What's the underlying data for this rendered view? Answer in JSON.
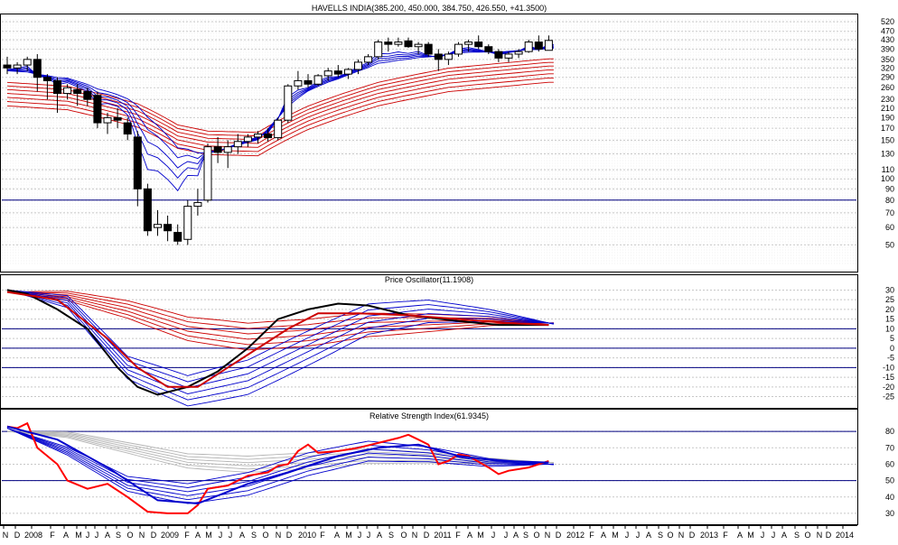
{
  "chart_data": [
    {
      "type": "candlestick",
      "title": "HAVELLS INDIA(385.200, 450.000, 384.750, 426.550, +41.3500)",
      "y_scale": "log",
      "ylim": [
        40,
        530
      ],
      "y_ticks": [
        50,
        60,
        70,
        80,
        90,
        100,
        110,
        130,
        150,
        170,
        190,
        210,
        230,
        260,
        290,
        320,
        350,
        390,
        430,
        470,
        520
      ],
      "hline": 80,
      "colors": {
        "short_ma": "#0000cc",
        "long_ma": "#cc0000",
        "candle": "#000000"
      },
      "candles": [
        {
          "x": 0,
          "o": 330,
          "h": 360,
          "l": 300,
          "c": 320
        },
        {
          "x": 1,
          "o": 320,
          "h": 340,
          "l": 300,
          "c": 330
        },
        {
          "x": 2,
          "o": 330,
          "h": 360,
          "l": 310,
          "c": 350
        },
        {
          "x": 3,
          "o": 350,
          "h": 370,
          "l": 250,
          "c": 290
        },
        {
          "x": 4,
          "o": 290,
          "h": 300,
          "l": 230,
          "c": 280
        },
        {
          "x": 5,
          "o": 280,
          "h": 290,
          "l": 200,
          "c": 245
        },
        {
          "x": 6,
          "o": 245,
          "h": 270,
          "l": 230,
          "c": 260
        },
        {
          "x": 7,
          "o": 255,
          "h": 270,
          "l": 215,
          "c": 245
        },
        {
          "x": 8,
          "o": 250,
          "h": 260,
          "l": 215,
          "c": 230
        },
        {
          "x": 9,
          "o": 240,
          "h": 250,
          "l": 170,
          "c": 180
        },
        {
          "x": 10,
          "o": 180,
          "h": 200,
          "l": 160,
          "c": 190
        },
        {
          "x": 11,
          "o": 190,
          "h": 210,
          "l": 170,
          "c": 185
        },
        {
          "x": 12,
          "o": 180,
          "h": 190,
          "l": 150,
          "c": 160
        },
        {
          "x": 13,
          "o": 155,
          "h": 165,
          "l": 75,
          "c": 90
        },
        {
          "x": 14,
          "o": 90,
          "h": 95,
          "l": 55,
          "c": 58
        },
        {
          "x": 15,
          "o": 60,
          "h": 72,
          "l": 55,
          "c": 62
        },
        {
          "x": 16,
          "o": 62,
          "h": 68,
          "l": 52,
          "c": 58
        },
        {
          "x": 17,
          "o": 57,
          "h": 62,
          "l": 50,
          "c": 52
        },
        {
          "x": 18,
          "o": 53,
          "h": 80,
          "l": 50,
          "c": 75
        },
        {
          "x": 19,
          "o": 75,
          "h": 90,
          "l": 68,
          "c": 78
        },
        {
          "x": 20,
          "o": 80,
          "h": 145,
          "l": 78,
          "c": 140
        },
        {
          "x": 21,
          "o": 140,
          "h": 155,
          "l": 118,
          "c": 132
        },
        {
          "x": 22,
          "o": 132,
          "h": 150,
          "l": 112,
          "c": 140
        },
        {
          "x": 23,
          "o": 140,
          "h": 160,
          "l": 130,
          "c": 148
        },
        {
          "x": 24,
          "o": 148,
          "h": 160,
          "l": 140,
          "c": 155
        },
        {
          "x": 25,
          "o": 155,
          "h": 165,
          "l": 145,
          "c": 160
        },
        {
          "x": 26,
          "o": 160,
          "h": 170,
          "l": 148,
          "c": 154
        },
        {
          "x": 27,
          "o": 154,
          "h": 190,
          "l": 150,
          "c": 185
        },
        {
          "x": 28,
          "o": 185,
          "h": 270,
          "l": 180,
          "c": 265
        },
        {
          "x": 29,
          "o": 265,
          "h": 310,
          "l": 255,
          "c": 280
        },
        {
          "x": 30,
          "o": 280,
          "h": 300,
          "l": 260,
          "c": 270
        },
        {
          "x": 31,
          "o": 270,
          "h": 300,
          "l": 265,
          "c": 295
        },
        {
          "x": 32,
          "o": 295,
          "h": 320,
          "l": 280,
          "c": 310
        },
        {
          "x": 33,
          "o": 310,
          "h": 330,
          "l": 290,
          "c": 300
        },
        {
          "x": 34,
          "o": 300,
          "h": 320,
          "l": 285,
          "c": 315
        },
        {
          "x": 35,
          "o": 315,
          "h": 350,
          "l": 300,
          "c": 340
        },
        {
          "x": 36,
          "o": 340,
          "h": 370,
          "l": 330,
          "c": 360
        },
        {
          "x": 37,
          "o": 360,
          "h": 430,
          "l": 350,
          "c": 420
        },
        {
          "x": 38,
          "o": 420,
          "h": 440,
          "l": 380,
          "c": 410
        },
        {
          "x": 39,
          "o": 410,
          "h": 440,
          "l": 400,
          "c": 420
        },
        {
          "x": 40,
          "o": 425,
          "h": 440,
          "l": 395,
          "c": 400
        },
        {
          "x": 41,
          "o": 400,
          "h": 420,
          "l": 370,
          "c": 410
        },
        {
          "x": 42,
          "o": 410,
          "h": 420,
          "l": 360,
          "c": 370
        },
        {
          "x": 43,
          "o": 370,
          "h": 390,
          "l": 310,
          "c": 350
        },
        {
          "x": 44,
          "o": 350,
          "h": 380,
          "l": 330,
          "c": 370
        },
        {
          "x": 45,
          "o": 370,
          "h": 420,
          "l": 360,
          "c": 410
        },
        {
          "x": 46,
          "o": 410,
          "h": 430,
          "l": 380,
          "c": 420
        },
        {
          "x": 47,
          "o": 420,
          "h": 450,
          "l": 390,
          "c": 400
        },
        {
          "x": 48,
          "o": 400,
          "h": 410,
          "l": 370,
          "c": 380
        },
        {
          "x": 49,
          "o": 380,
          "h": 390,
          "l": 340,
          "c": 355
        },
        {
          "x": 50,
          "o": 355,
          "h": 380,
          "l": 340,
          "c": 370
        },
        {
          "x": 51,
          "o": 370,
          "h": 390,
          "l": 355,
          "c": 380
        },
        {
          "x": 52,
          "o": 380,
          "h": 430,
          "l": 375,
          "c": 420
        },
        {
          "x": 53,
          "o": 420,
          "h": 450,
          "l": 380,
          "c": 390
        },
        {
          "x": 54,
          "o": 385,
          "h": 450,
          "l": 385,
          "c": 427
        }
      ],
      "ma_blue": [
        [
          0,
          310
        ],
        [
          6,
          290
        ],
        [
          13,
          230
        ],
        [
          17,
          150
        ],
        [
          20,
          130
        ],
        [
          25,
          150
        ],
        [
          30,
          250
        ],
        [
          37,
          330
        ],
        [
          44,
          370
        ],
        [
          54,
          390
        ]
      ],
      "ma_red": [
        [
          0,
          250
        ],
        [
          6,
          240
        ],
        [
          13,
          200
        ],
        [
          17,
          160
        ],
        [
          20,
          150
        ],
        [
          25,
          148
        ],
        [
          30,
          195
        ],
        [
          37,
          250
        ],
        [
          44,
          290
        ],
        [
          54,
          320
        ]
      ]
    },
    {
      "type": "line",
      "title": "Price Oscillator(11.1908)",
      "ylim": [
        -28,
        33
      ],
      "y_ticks": [
        30,
        25,
        20,
        15,
        10,
        5,
        0,
        -5,
        -10,
        -15,
        -20,
        -25
      ],
      "hlines": [
        10,
        0,
        -10
      ],
      "series": [
        {
          "color": "#000000",
          "points": [
            [
              0,
              30
            ],
            [
              2,
              28
            ],
            [
              5,
              20
            ],
            [
              8,
              10
            ],
            [
              11,
              -10
            ],
            [
              13,
              -20
            ],
            [
              15,
              -24
            ],
            [
              18,
              -20
            ],
            [
              21,
              -12
            ],
            [
              24,
              0
            ],
            [
              27,
              15
            ],
            [
              30,
              20
            ],
            [
              33,
              23
            ],
            [
              36,
              22
            ],
            [
              40,
              17
            ],
            [
              45,
              14
            ],
            [
              49,
              12
            ],
            [
              54,
              12
            ]
          ]
        },
        {
          "color": "#cc0000",
          "points": [
            [
              0,
              29
            ],
            [
              5,
              25
            ],
            [
              10,
              5
            ],
            [
              13,
              -10
            ],
            [
              16,
              -20
            ],
            [
              19,
              -20
            ],
            [
              22,
              -10
            ],
            [
              25,
              0
            ],
            [
              28,
              10
            ],
            [
              31,
              18
            ],
            [
              35,
              18
            ],
            [
              40,
              17
            ],
            [
              45,
              15
            ],
            [
              50,
              13
            ],
            [
              54,
              12
            ]
          ]
        }
      ],
      "ma_fan": {
        "blue": [
          30,
          24,
          -10,
          -22,
          -15,
          0,
          15,
          19,
          17,
          13
        ],
        "red": [
          29,
          27,
          20,
          10,
          6,
          8,
          12,
          13,
          14,
          13
        ]
      }
    },
    {
      "type": "line",
      "title": "Relative Strength Index(61.9345)",
      "ylim": [
        25,
        90
      ],
      "y_ticks": [
        80,
        70,
        60,
        50,
        40,
        30
      ],
      "hlines": [
        80,
        50
      ],
      "series": [
        {
          "color": "#ff0000",
          "points": [
            [
              0,
              83
            ],
            [
              1,
              82
            ],
            [
              2,
              85
            ],
            [
              3,
              70
            ],
            [
              4,
              65
            ],
            [
              5,
              60
            ],
            [
              6,
              50
            ],
            [
              8,
              45
            ],
            [
              10,
              48
            ],
            [
              12,
              40
            ],
            [
              14,
              31
            ],
            [
              16,
              30
            ],
            [
              18,
              30
            ],
            [
              19,
              35
            ],
            [
              20,
              45
            ],
            [
              22,
              47
            ],
            [
              24,
              53
            ],
            [
              26,
              55
            ],
            [
              27,
              59
            ],
            [
              28,
              60
            ],
            [
              29,
              68
            ],
            [
              30,
              72
            ],
            [
              31,
              67
            ],
            [
              33,
              68
            ],
            [
              35,
              70
            ],
            [
              37,
              73
            ],
            [
              39,
              76
            ],
            [
              40,
              78
            ],
            [
              41,
              75
            ],
            [
              42,
              72
            ],
            [
              43,
              60
            ],
            [
              44,
              62
            ],
            [
              45,
              66
            ],
            [
              46,
              65
            ],
            [
              48,
              58
            ],
            [
              49,
              54
            ],
            [
              50,
              56
            ],
            [
              52,
              58
            ],
            [
              53,
              60
            ],
            [
              54,
              61.9
            ]
          ]
        },
        {
          "color": "#0000cc",
          "points": [
            [
              0,
              83
            ],
            [
              5,
              75
            ],
            [
              10,
              58
            ],
            [
              15,
              38
            ],
            [
              19,
              36
            ],
            [
              24,
              48
            ],
            [
              28,
              55
            ],
            [
              33,
              65
            ],
            [
              37,
              70
            ],
            [
              41,
              72
            ],
            [
              45,
              65
            ],
            [
              49,
              62
            ],
            [
              54,
              61
            ]
          ]
        }
      ],
      "ma_fan": {
        "blue": [
          82,
          68,
          48,
          42,
          48,
          60,
          68,
          66,
          61,
          60
        ],
        "gray": [
          80,
          78,
          70,
          62,
          60,
          62,
          65,
          64,
          62,
          61
        ]
      }
    }
  ],
  "x_axis": {
    "month_labels": [
      "N",
      "D",
      "2008",
      "F",
      "A",
      "M",
      "J",
      "J",
      "A",
      "S",
      "O",
      "N",
      "D",
      "2009",
      "F",
      "A",
      "M",
      "J",
      "J",
      "A",
      "S",
      "O",
      "N",
      "D",
      "2010",
      "F",
      "A",
      "M",
      "J",
      "J",
      "A",
      "S",
      "O",
      "N",
      "D",
      "2011",
      "F",
      "A",
      "M",
      "J",
      "J",
      "A",
      "S",
      "O",
      "N",
      "D",
      "2012",
      "F",
      "A",
      "M",
      "J",
      "J",
      "A",
      "S",
      "O",
      "N",
      "D",
      "2013",
      "F",
      "A",
      "M",
      "J",
      "J",
      "A",
      "S",
      "O",
      "N",
      "D",
      "2014"
    ],
    "label_x": [
      6,
      19,
      37,
      58,
      73,
      87,
      97,
      107,
      119,
      131,
      144,
      157,
      170,
      188,
      207,
      219,
      231,
      244,
      255,
      268,
      281,
      294,
      308,
      320,
      340,
      357,
      373,
      386,
      398,
      408,
      420,
      433,
      447,
      459,
      472,
      490,
      507,
      520,
      532,
      546,
      560,
      571,
      582,
      594,
      606,
      618,
      637,
      655,
      668,
      681,
      694,
      706,
      718,
      731,
      742,
      754,
      766,
      785,
      803,
      819,
      831,
      844,
      856,
      868,
      882,
      894,
      907,
      917,
      935
    ]
  }
}
